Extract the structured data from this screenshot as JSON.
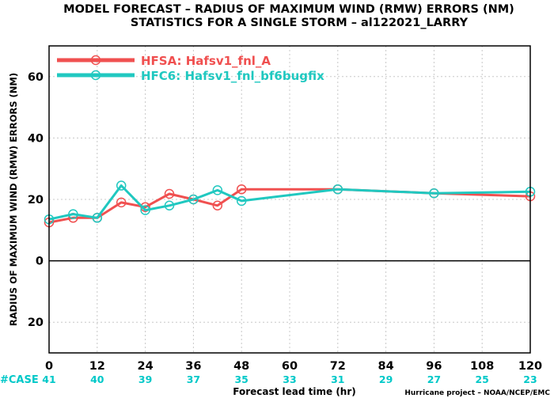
{
  "chart_data": {
    "type": "line",
    "title": "MODEL FORECAST – RADIUS OF MAXIMUM WIND (RMW) ERRORS (NM)",
    "subtitle": "STATISTICS FOR A SINGLE STORM – al122021_LARRY",
    "xlabel": "Forecast lead time (hr)",
    "ylabel": "RADIUS OF MAXIMUM WIND (RMW) ERRORS (NM)",
    "xlim": [
      0,
      120
    ],
    "ylim": [
      -30,
      70
    ],
    "xticks": [
      0,
      12,
      24,
      36,
      48,
      60,
      72,
      84,
      96,
      108,
      120
    ],
    "yticks": [
      -20,
      0,
      20,
      40,
      60
    ],
    "ytick_labels": [
      "20",
      "0",
      "20",
      "40",
      "60"
    ],
    "grid": true,
    "legend_position": "top-left",
    "credit": "Hurricane project – NOAA/NCEP/EMC",
    "case_label": "#CASE",
    "case_color": "#00c8c8",
    "case_counts": [
      "41",
      "40",
      "39",
      "37",
      "35",
      "33",
      "31",
      "29",
      "27",
      "25",
      "23"
    ],
    "series": [
      {
        "name": "HFSA: Hafsv1_fnl_A",
        "color": "#f05050",
        "x": [
          0,
          6,
          12,
          18,
          24,
          30,
          36,
          42,
          48,
          72,
          96,
          120
        ],
        "y": [
          12.5,
          14,
          14,
          19,
          17.5,
          21.8,
          20,
          18,
          23.3,
          23.3,
          22,
          21
        ]
      },
      {
        "name": "HFC6: Hafsv1_fnl_bf6bugfix",
        "color": "#20c8c0",
        "x": [
          0,
          6,
          12,
          18,
          24,
          30,
          36,
          42,
          48,
          72,
          96,
          120
        ],
        "y": [
          13.5,
          15.2,
          14,
          24.5,
          16.5,
          18,
          20,
          23,
          19.5,
          23.3,
          22,
          22.5
        ]
      }
    ]
  }
}
